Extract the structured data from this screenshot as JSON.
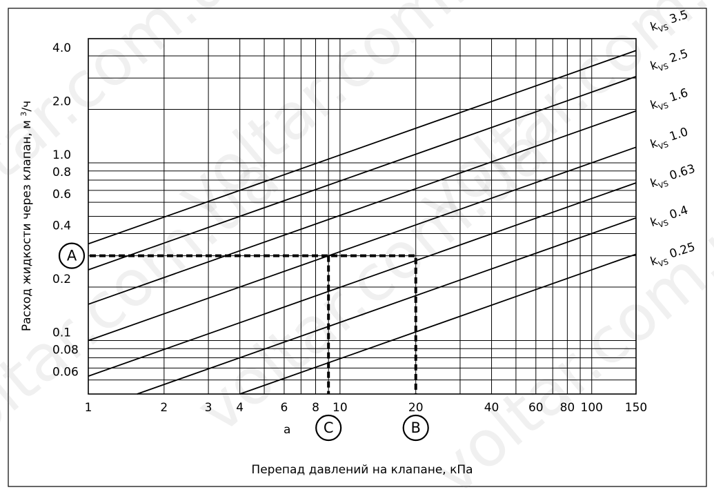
{
  "chart_data": {
    "type": "line",
    "title": "",
    "xlabel": "Перепад давлений на клапане, кПа",
    "ylabel": "Расход жидкости через клапан, м³/ч",
    "ylabel_parts": [
      "Расход жидкости через клапан, м ",
      "3",
      "/ч"
    ],
    "x_scale": "log",
    "y_scale": "log",
    "xlim": [
      1,
      150
    ],
    "ylim": [
      0.05,
      5
    ],
    "grid": true,
    "x_ticks": [
      {
        "v": 1,
        "t": "1"
      },
      {
        "v": 2,
        "t": "2"
      },
      {
        "v": 3,
        "t": "3"
      },
      {
        "v": 4,
        "t": "4"
      },
      {
        "v": 6,
        "t": "6"
      },
      {
        "v": 8,
        "t": "8"
      },
      {
        "v": 10,
        "t": "10"
      },
      {
        "v": 20,
        "t": "20"
      },
      {
        "v": 40,
        "t": "40"
      },
      {
        "v": 60,
        "t": "60"
      },
      {
        "v": 80,
        "t": "80"
      },
      {
        "v": 100,
        "t": "100"
      },
      {
        "v": 150,
        "t": "150"
      }
    ],
    "y_ticks": [
      {
        "v": 0.06,
        "t": "0.06"
      },
      {
        "v": 0.08,
        "t": "0.08"
      },
      {
        "v": 0.1,
        "t": "0.1"
      },
      {
        "v": 0.2,
        "t": "0.2"
      },
      {
        "v": 0.4,
        "t": "0.4"
      },
      {
        "v": 0.6,
        "t": "0.6"
      },
      {
        "v": 0.8,
        "t": "0.8"
      },
      {
        "v": 1.0,
        "t": "1.0"
      },
      {
        "v": 2.0,
        "t": "2.0"
      },
      {
        "v": 4.0,
        "t": "4.0"
      }
    ],
    "x_gridlines": [
      1,
      2,
      3,
      4,
      5,
      6,
      7,
      8,
      9,
      10,
      20,
      30,
      40,
      50,
      60,
      70,
      80,
      90,
      100,
      150
    ],
    "y_gridlines": [
      0.05,
      0.06,
      0.07,
      0.08,
      0.09,
      0.1,
      0.2,
      0.3,
      0.4,
      0.5,
      0.6,
      0.7,
      0.8,
      0.9,
      1.0,
      2.0,
      3.0,
      4.0,
      5.0
    ],
    "series": [
      {
        "name": "3.5",
        "kvs": 3.5
      },
      {
        "name": "2.5",
        "kvs": 2.5
      },
      {
        "name": "1.6",
        "kvs": 1.6
      },
      {
        "name": "1.0",
        "kvs": 1.0
      },
      {
        "name": "0.63",
        "kvs": 0.63
      },
      {
        "name": "0.4",
        "kvs": 0.4
      },
      {
        "name": "0.25",
        "kvs": 0.25
      }
    ],
    "series_label_prefix": "k",
    "series_label_subscript": "VS",
    "extra_labels": [
      {
        "text": "a",
        "x": 9
      }
    ],
    "guides": {
      "flow": 0.3,
      "dp_c": 9,
      "dp_b": 20,
      "marker_a": "A",
      "marker_b": "B",
      "marker_c": "C"
    }
  },
  "watermark_text": "voltar.com.ua"
}
